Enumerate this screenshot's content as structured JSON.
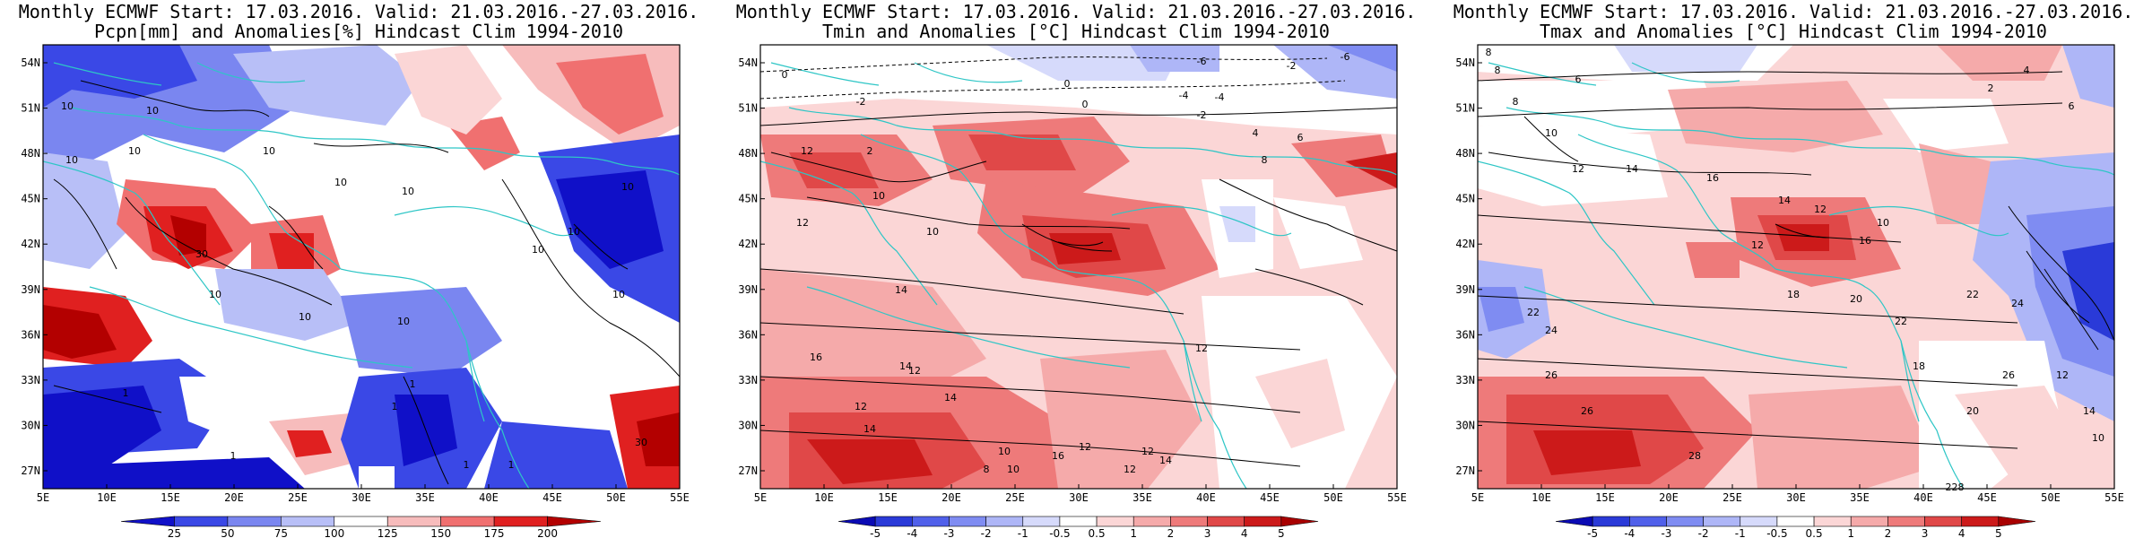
{
  "panels": [
    {
      "id": "pcpn",
      "title1": "Monthly ECMWF Start: 17.03.2016. Valid: 21.03.2016.-27.03.2016.",
      "title2": "Pcpn[mm] and Anomalies[%] Hindcast Clim 1994-2010",
      "lat_labels": [
        "54N",
        "51N",
        "48N",
        "45N",
        "42N",
        "39N",
        "36N",
        "33N",
        "30N",
        "27N"
      ],
      "lon_labels": [
        "5E",
        "10E",
        "15E",
        "20E",
        "25E",
        "30E",
        "35E",
        "40E",
        "45E",
        "50E",
        "55E"
      ],
      "colorbar": [
        "25",
        "50",
        "75",
        "100",
        "125",
        "150",
        "175",
        "200"
      ],
      "colorbar_colors": [
        "#1010c8",
        "#3a48e6",
        "#7a86f0",
        "#b8bff7",
        "#ffffff",
        "#f7bcbc",
        "#f07070",
        "#e02020",
        "#b30000"
      ],
      "contour_labels": [
        "10",
        "10",
        "10",
        "10",
        "10",
        "10",
        "30",
        "10",
        "10",
        "10",
        "10",
        "10",
        "1",
        "1",
        "1",
        "1",
        "1",
        "30",
        "1",
        "10",
        "10",
        "10"
      ]
    },
    {
      "id": "tmin",
      "title1": "Monthly ECMWF Start: 17.03.2016. Valid: 21.03.2016.-27.03.2016.",
      "title2": "Tmin and Anomalies [°C] Hindcast Clim 1994-2010",
      "lat_labels": [
        "54N",
        "51N",
        "48N",
        "45N",
        "42N",
        "39N",
        "36N",
        "33N",
        "30N",
        "27N"
      ],
      "lon_labels": [
        "5E",
        "10E",
        "15E",
        "20E",
        "25E",
        "30E",
        "35E",
        "40E",
        "45E",
        "50E",
        "55E"
      ],
      "colorbar": [
        "-5",
        "-4",
        "-3",
        "-2",
        "-1",
        "-0.5",
        "0.5",
        "1",
        "2",
        "3",
        "4",
        "5"
      ],
      "colorbar_colors": [
        "#0a0ab4",
        "#2a3ad8",
        "#5060ea",
        "#7f8cf2",
        "#aeb6f7",
        "#d6dafb",
        "#ffffff",
        "#fbd6d6",
        "#f5aaaa",
        "#ee7a7a",
        "#e04848",
        "#cc1a1a",
        "#a80000"
      ],
      "contour_labels": [
        "-6",
        "-6",
        "-2",
        "0",
        "-2",
        "0",
        "0",
        "-4",
        "-4",
        "-2",
        "2",
        "4",
        "6",
        "8",
        "12",
        "10",
        "10",
        "12",
        "14",
        "16",
        "14",
        "12",
        "14",
        "12",
        "14",
        "10",
        "8",
        "10",
        "12",
        "12",
        "12",
        "16",
        "14",
        "12"
      ]
    },
    {
      "id": "tmax",
      "title1": "Monthly ECMWF Start: 17.03.2016. Valid: 21.03.2016.-27.03.2016.",
      "title2": "Tmax and Anomalies [°C] Hindcast Clim 1994-2010",
      "lat_labels": [
        "54N",
        "51N",
        "48N",
        "45N",
        "42N",
        "39N",
        "36N",
        "33N",
        "30N",
        "27N"
      ],
      "lon_labels": [
        "5E",
        "10E",
        "15E",
        "20E",
        "25E",
        "30E",
        "35E",
        "40E",
        "45E",
        "50E",
        "55E"
      ],
      "colorbar": [
        "-5",
        "-4",
        "-3",
        "-2",
        "-1",
        "-0.5",
        "0.5",
        "1",
        "2",
        "3",
        "4",
        "5"
      ],
      "colorbar_colors": [
        "#0a0ab4",
        "#2a3ad8",
        "#5060ea",
        "#7f8cf2",
        "#aeb6f7",
        "#d6dafb",
        "#ffffff",
        "#fbd6d6",
        "#f5aaaa",
        "#ee7a7a",
        "#e04848",
        "#cc1a1a",
        "#a80000"
      ],
      "contour_labels": [
        "8",
        "8",
        "6",
        "2",
        "4",
        "6",
        "8",
        "10",
        "12",
        "14",
        "16",
        "14",
        "12",
        "10",
        "12",
        "16",
        "18",
        "20",
        "22",
        "24",
        "26",
        "28",
        "22",
        "24",
        "26",
        "20",
        "18",
        "12",
        "22",
        "14",
        "10",
        "228",
        "26"
      ]
    }
  ]
}
